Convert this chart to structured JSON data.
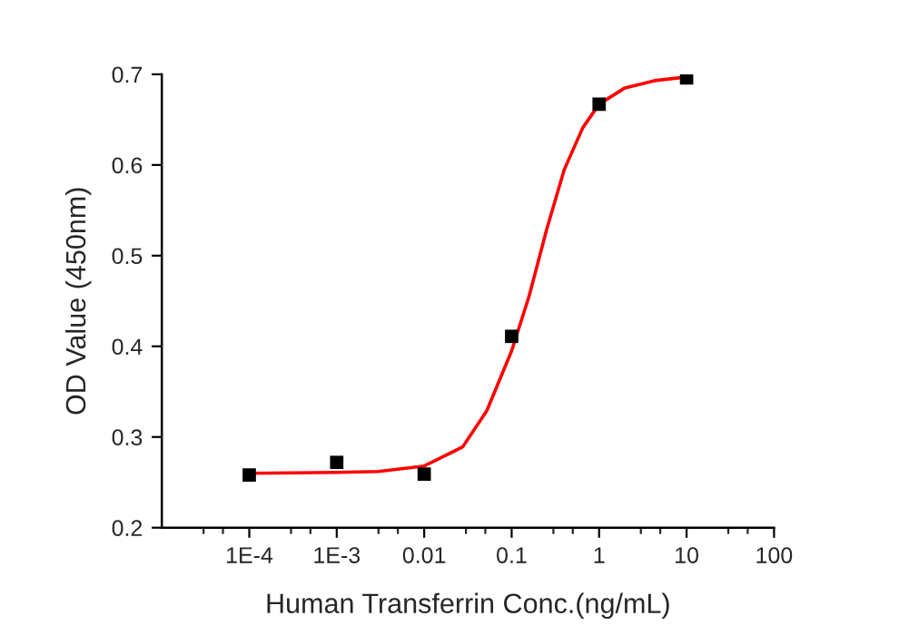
{
  "chart_data": {
    "type": "scatter",
    "xlabel": "Human Transferrin Conc.(ng/mL)",
    "ylabel": "OD Value (450nm)",
    "log": "x",
    "xlim": [
      1e-05,
      100
    ],
    "xticks": [
      {
        "value": 0.0001,
        "label": "1E-4"
      },
      {
        "value": 0.001,
        "label": "1E-3"
      },
      {
        "value": 0.01,
        "label": "0.01"
      },
      {
        "value": 0.1,
        "label": "0.1"
      },
      {
        "value": 1,
        "label": "1"
      },
      {
        "value": 10,
        "label": "10"
      },
      {
        "value": 100,
        "label": "100"
      }
    ],
    "ylim": [
      0.2,
      0.7
    ],
    "yticks": [
      0.2,
      0.3,
      0.4,
      0.5,
      0.6,
      0.7
    ],
    "grid": false,
    "legend": false,
    "series": [
      {
        "color": "#000000",
        "marker": "square",
        "x": [
          0.0001,
          0.001,
          0.01,
          0.1,
          1,
          10
        ],
        "values": [
          0.258,
          0.272,
          0.259,
          0.411,
          0.667,
          0.696
        ]
      },
      {
        "type": "line",
        "color": "#ff0000",
        "marker": "none",
        "line_style": "solid",
        "x": [
          0.0001,
          0.001,
          0.003,
          0.01,
          0.0275,
          0.052,
          0.1,
          0.158,
          0.25,
          0.4,
          0.65,
          1,
          1.97,
          4.3,
          10
        ],
        "values": [
          0.26,
          0.261,
          0.262,
          0.268,
          0.289,
          0.329,
          0.395,
          0.455,
          0.528,
          0.595,
          0.641,
          0.667,
          0.685,
          0.693,
          0.697
        ]
      }
    ]
  }
}
